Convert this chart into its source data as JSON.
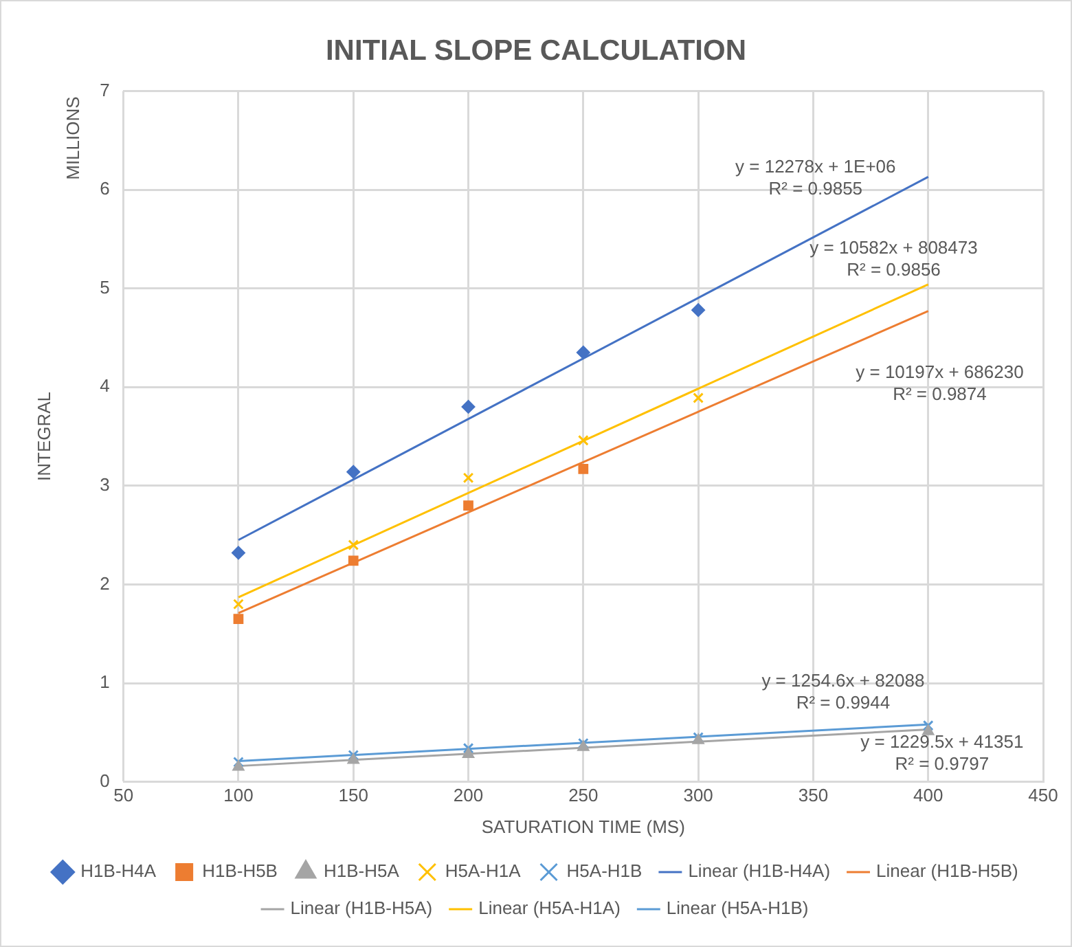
{
  "chart_data": {
    "type": "scatter",
    "title": "INITIAL SLOPE CALCULATION",
    "xlabel": "SATURATION TIME (MS)",
    "ylabel": "INTEGRAL",
    "xlim": [
      50,
      450
    ],
    "xticks": [
      50,
      100,
      150,
      200,
      250,
      300,
      350,
      400,
      450
    ],
    "ylim": [
      0,
      7
    ],
    "yticks": [
      0,
      1,
      2,
      3,
      4,
      5,
      6,
      7
    ],
    "grid": true,
    "legend": "bottom",
    "series": [
      {
        "name": "H1B-H4A",
        "marker": "diamond",
        "color": "#4472c4",
        "x": [
          100,
          150,
          200,
          250,
          300
        ],
        "values": [
          2.32,
          3.14,
          3.8,
          4.35,
          4.78
        ]
      },
      {
        "name": "H1B-H5B",
        "marker": "square",
        "color": "#ed7d31",
        "x": [
          100,
          150,
          200,
          250
        ],
        "values": [
          1.65,
          2.24,
          2.8,
          3.17
        ]
      },
      {
        "name": "H1B-H5A",
        "marker": "triangle",
        "color": "#a5a5a5",
        "x": [
          100,
          150,
          200,
          250,
          300,
          400
        ],
        "values": [
          0.15,
          0.22,
          0.28,
          0.35,
          0.42,
          0.51
        ]
      },
      {
        "name": "H5A-H1A",
        "marker": "cross",
        "color": "#ffc000",
        "x": [
          100,
          150,
          200,
          250,
          300
        ],
        "values": [
          1.8,
          2.4,
          3.08,
          3.46,
          3.89
        ]
      },
      {
        "name": "H5A-H1B",
        "marker": "cross",
        "color": "#5b9bd5",
        "x": [
          100,
          150,
          200,
          250,
          300,
          400
        ],
        "values": [
          0.2,
          0.27,
          0.34,
          0.39,
          0.45,
          0.57
        ]
      },
      {
        "name": "Linear (H1B-H4A)",
        "type": "line",
        "marker": "none",
        "color": "#4472c4",
        "x": [
          100,
          400
        ],
        "values": [
          2.45,
          6.13
        ]
      },
      {
        "name": "Linear (H1B-H5B)",
        "type": "line",
        "marker": "none",
        "color": "#ed7d31",
        "x": [
          100,
          400
        ],
        "values": [
          1.71,
          4.77
        ]
      },
      {
        "name": "Linear (H1B-H5A)",
        "type": "line",
        "marker": "none",
        "color": "#a5a5a5",
        "x": [
          100,
          400
        ],
        "values": [
          0.16,
          0.53
        ]
      },
      {
        "name": "Linear (H5A-H1A)",
        "type": "line",
        "marker": "none",
        "color": "#ffc000",
        "x": [
          100,
          400
        ],
        "values": [
          1.87,
          5.04
        ]
      },
      {
        "name": "Linear (H5A-H1B)",
        "type": "line",
        "marker": "none",
        "color": "#5b9bd5",
        "x": [
          100,
          400
        ],
        "values": [
          0.21,
          0.58
        ]
      }
    ],
    "annotations": [
      "MILLIONS",
      "y = 12278x + 1E+06\nR² = 0.9855",
      "y = 10582x + 808473\nR² = 0.9856",
      "y = 10197x + 686230\nR² = 0.9874",
      "y = 1254.6x + 82088\nR² = 0.9944",
      "y = 1229.5x + 41351\nR² = 0.9797"
    ]
  }
}
